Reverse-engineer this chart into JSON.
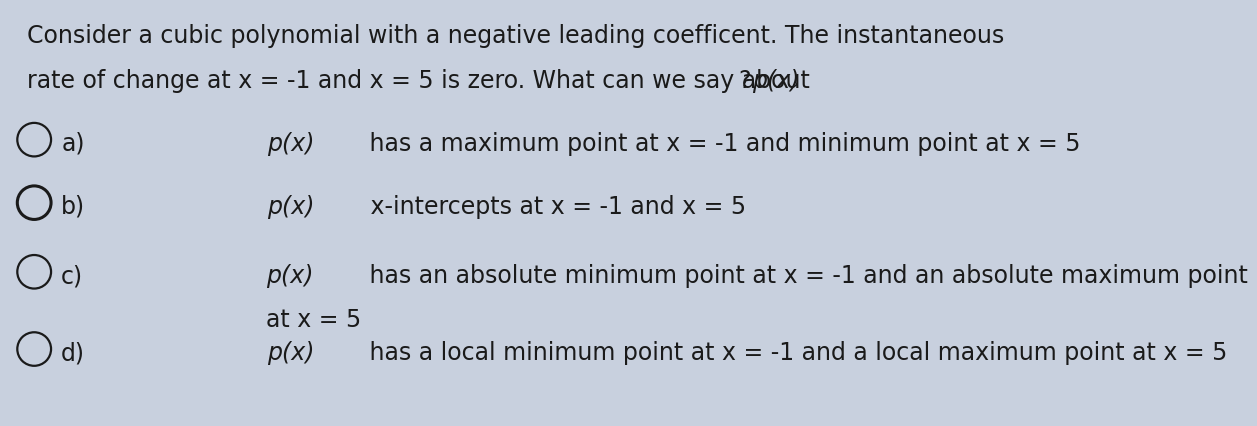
{
  "background_color": "#c8d0de",
  "title_line1": "Consider a cubic polynomial with a negative leading coefficent. The instantaneous",
  "title_line2_normal": "rate of change at x = -1 and x = 5 is zero. What can we say about ",
  "title_line2_italic": "p(x)",
  "title_line2_end": "?",
  "options": [
    {
      "label": "a)",
      "italic": "p(x)",
      "rest": " has a maximum point at x = -1 and minimum point at x = 5",
      "selected": false,
      "multiline": false
    },
    {
      "label": "b)",
      "italic": "p(x)",
      "rest": " x-intercepts at x = -1 and x = 5",
      "selected": false,
      "thick_circle": true,
      "multiline": false
    },
    {
      "label": "c)",
      "italic": "p(x)",
      "rest": " has an absolute minimum point at x = -1 and an absolute maximum point",
      "rest2": "at x = 5",
      "selected": false,
      "multiline": true
    },
    {
      "label": "d)",
      "italic": "p(x)",
      "rest": " has a local minimum point at x = -1 and a local maximum point at x = 5",
      "selected": false,
      "multiline": false
    }
  ],
  "title_fontsize": 17,
  "option_fontsize": 17,
  "text_color": "#1a1a1a",
  "circle_r": 0.033,
  "circle_lw": 1.6,
  "circle_lw_thick": 2.2
}
